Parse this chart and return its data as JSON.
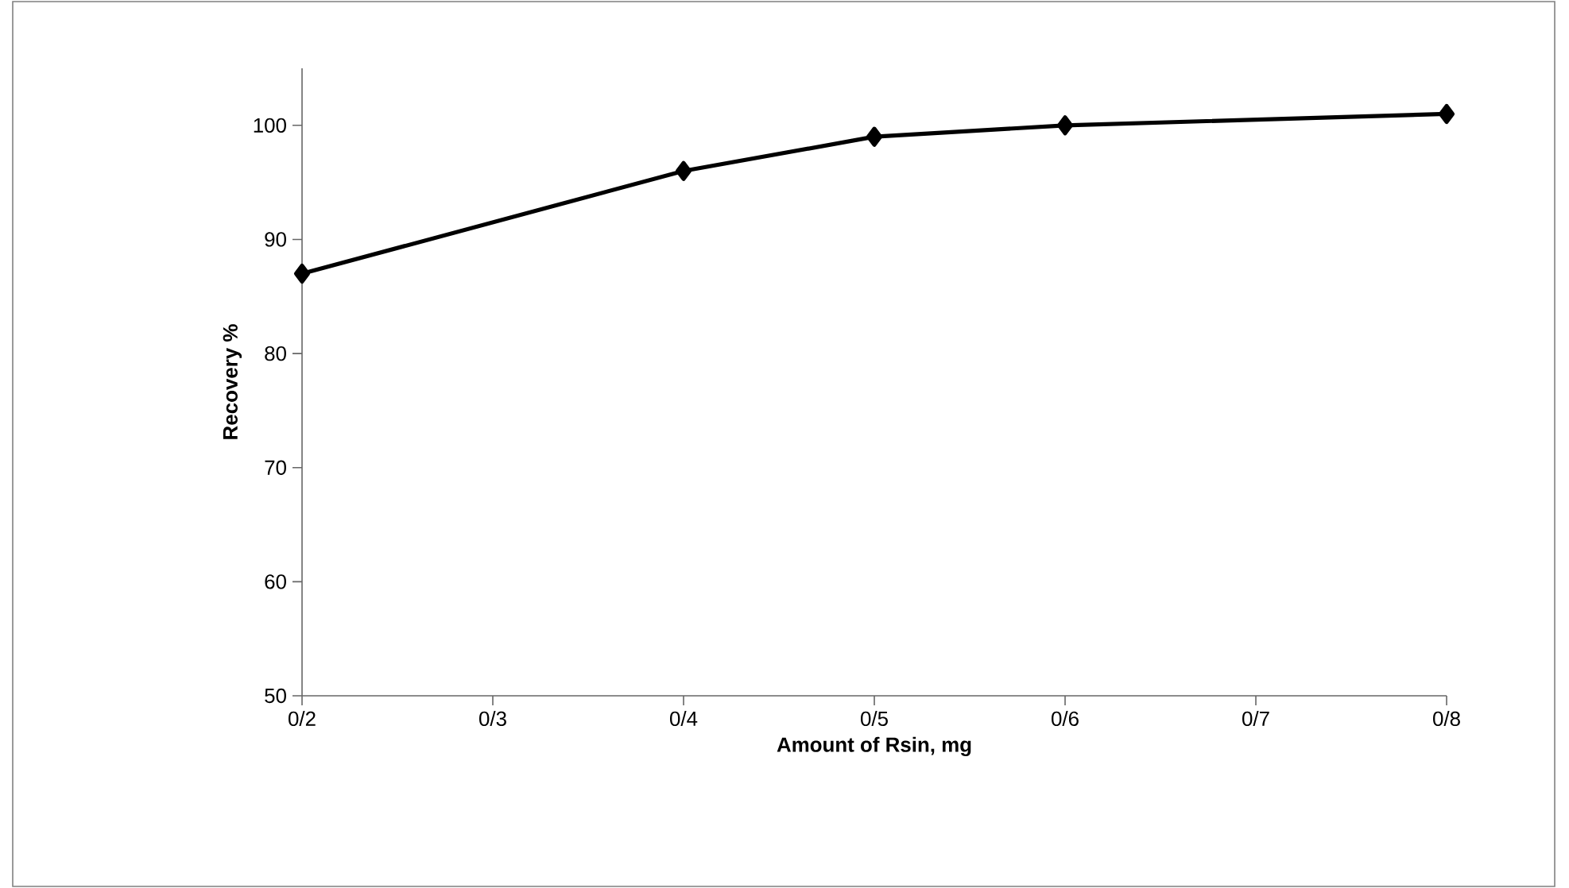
{
  "chart_data": {
    "type": "line",
    "xlabel": "Amount of Rsin, mg",
    "ylabel": "Recovery %",
    "categories": [
      "0/2",
      "0/3",
      "0/4",
      "0/5",
      "0/6",
      "0/7",
      "0/8"
    ],
    "series": [
      {
        "color": "#000000",
        "values": [
          87,
          null,
          96,
          99,
          100,
          null,
          101
        ]
      }
    ],
    "ylim": [
      50,
      105
    ],
    "yticks": [
      50,
      60,
      70,
      80,
      90,
      100
    ],
    "grid": false,
    "marker": "diamond",
    "line_style": "solid"
  }
}
